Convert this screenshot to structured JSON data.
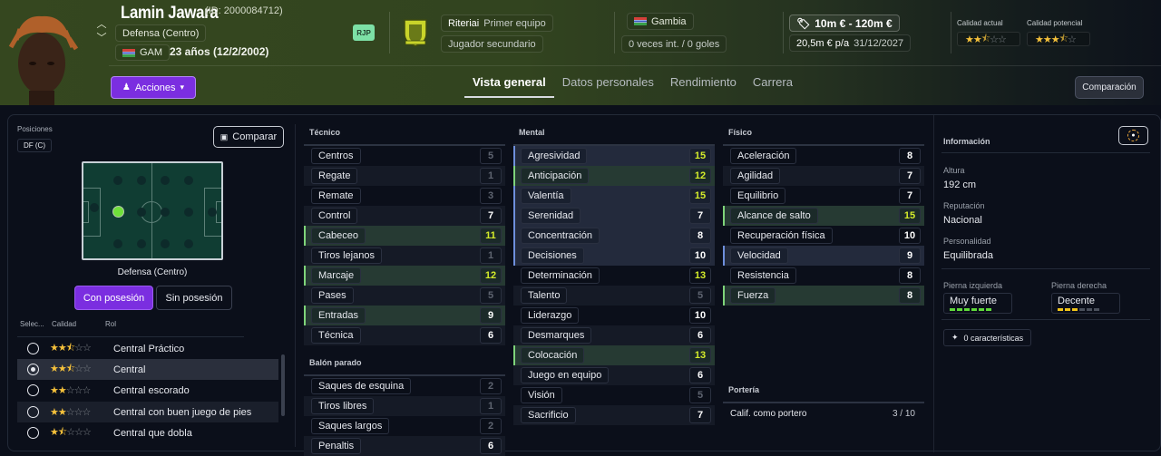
{
  "header": {
    "player_name": "Lamin Jawara",
    "player_id": "(ID: 2000084712)",
    "position": "Defensa (Centro)",
    "nation_code": "GAM",
    "age": "23 años (12/2/2002)",
    "badge": "RJP",
    "actions_label": "Acciones",
    "club_name": "Riteriai",
    "club_team": "Primer equipo",
    "squad_status": "Jugador secundario",
    "nation_name": "Gambia",
    "caps": "0 veces int. / 0 goles",
    "value_range": "10m € - 120m €",
    "wage": "20,5m € p/a",
    "contract_end": "31/12/2027",
    "current_quality_label": "Calidad actual",
    "potential_quality_label": "Calidad potencial",
    "current_stars": 2.5,
    "potential_stars": 3.5
  },
  "tabs": [
    {
      "label": "Vista general",
      "active": true
    },
    {
      "label": "Datos personales",
      "active": false
    },
    {
      "label": "Rendimiento",
      "active": false
    },
    {
      "label": "Carrera",
      "active": false
    }
  ],
  "compare_header_button": "Comparación",
  "left": {
    "positions_label": "Posiciones",
    "position_chip": "DF (C)",
    "compare_button": "Comparar",
    "pitch_caption": "Defensa (Centro)",
    "with_possession": "Con posesión",
    "without_possession": "Sin posesión",
    "role_headers": {
      "select": "Selec...",
      "quality": "Calidad",
      "role": "Rol"
    },
    "roles": [
      {
        "name": "Central Práctico",
        "stars": 2.5,
        "selected": false
      },
      {
        "name": "Central",
        "stars": 2.5,
        "selected": true
      },
      {
        "name": "Central escorado",
        "stars": 2,
        "selected": false
      },
      {
        "name": "Central con buen juego de pies",
        "stars": 2,
        "selected": false
      },
      {
        "name": "Central que dobla",
        "stars": 1.5,
        "selected": false
      }
    ]
  },
  "technical": {
    "title": "Técnico",
    "attributes": [
      {
        "name": "Centros",
        "value": "5",
        "tone": "dim",
        "hl": ""
      },
      {
        "name": "Regate",
        "value": "1",
        "tone": "dim",
        "hl": ""
      },
      {
        "name": "Remate",
        "value": "3",
        "tone": "dim",
        "hl": ""
      },
      {
        "name": "Control",
        "value": "7",
        "tone": "w",
        "hl": ""
      },
      {
        "name": "Cabeceo",
        "value": "11",
        "tone": "y",
        "hl": "green"
      },
      {
        "name": "Tiros lejanos",
        "value": "1",
        "tone": "dim",
        "hl": ""
      },
      {
        "name": "Marcaje",
        "value": "12",
        "tone": "y",
        "hl": "green"
      },
      {
        "name": "Pases",
        "value": "5",
        "tone": "dim",
        "hl": ""
      },
      {
        "name": "Entradas",
        "value": "9",
        "tone": "w",
        "hl": "green"
      },
      {
        "name": "Técnica",
        "value": "6",
        "tone": "w",
        "hl": ""
      }
    ]
  },
  "set_pieces": {
    "title": "Balón parado",
    "attributes": [
      {
        "name": "Saques de esquina",
        "value": "2",
        "tone": "dim",
        "hl": ""
      },
      {
        "name": "Tiros libres",
        "value": "1",
        "tone": "dim",
        "hl": ""
      },
      {
        "name": "Saques largos",
        "value": "2",
        "tone": "dim",
        "hl": ""
      },
      {
        "name": "Penaltis",
        "value": "6",
        "tone": "w",
        "hl": ""
      }
    ]
  },
  "mental": {
    "title": "Mental",
    "attributes": [
      {
        "name": "Agresividad",
        "value": "15",
        "tone": "y",
        "hl": "blue"
      },
      {
        "name": "Anticipación",
        "value": "12",
        "tone": "y",
        "hl": "green"
      },
      {
        "name": "Valentía",
        "value": "15",
        "tone": "y",
        "hl": "blue"
      },
      {
        "name": "Serenidad",
        "value": "7",
        "tone": "w",
        "hl": "blue"
      },
      {
        "name": "Concentración",
        "value": "8",
        "tone": "w",
        "hl": "blue"
      },
      {
        "name": "Decisiones",
        "value": "10",
        "tone": "w",
        "hl": "blue"
      },
      {
        "name": "Determinación",
        "value": "13",
        "tone": "y",
        "hl": ""
      },
      {
        "name": "Talento",
        "value": "5",
        "tone": "dim",
        "hl": ""
      },
      {
        "name": "Liderazgo",
        "value": "10",
        "tone": "w",
        "hl": ""
      },
      {
        "name": "Desmarques",
        "value": "6",
        "tone": "w",
        "hl": ""
      },
      {
        "name": "Colocación",
        "value": "13",
        "tone": "y",
        "hl": "green"
      },
      {
        "name": "Juego en equipo",
        "value": "6",
        "tone": "w",
        "hl": ""
      },
      {
        "name": "Visión",
        "value": "5",
        "tone": "dim",
        "hl": ""
      },
      {
        "name": "Sacrificio",
        "value": "7",
        "tone": "w",
        "hl": ""
      }
    ]
  },
  "physical": {
    "title": "Físico",
    "attributes": [
      {
        "name": "Aceleración",
        "value": "8",
        "tone": "w",
        "hl": ""
      },
      {
        "name": "Agilidad",
        "value": "7",
        "tone": "w",
        "hl": ""
      },
      {
        "name": "Equilibrio",
        "value": "7",
        "tone": "w",
        "hl": ""
      },
      {
        "name": "Alcance de salto",
        "value": "15",
        "tone": "y",
        "hl": "green"
      },
      {
        "name": "Recuperación física",
        "value": "10",
        "tone": "w",
        "hl": ""
      },
      {
        "name": "Velocidad",
        "value": "9",
        "tone": "w",
        "hl": "blue"
      },
      {
        "name": "Resistencia",
        "value": "8",
        "tone": "w",
        "hl": ""
      },
      {
        "name": "Fuerza",
        "value": "8",
        "tone": "w",
        "hl": "green"
      }
    ]
  },
  "goalkeeping": {
    "title": "Portería",
    "label": "Calif. como portero",
    "value": "3 / 10"
  },
  "info": {
    "title": "Información",
    "height_label": "Altura",
    "height": "192 cm",
    "reputation_label": "Reputación",
    "reputation": "Nacional",
    "personality_label": "Personalidad",
    "personality": "Equilibrada",
    "left_foot_label": "Pierna izquierda",
    "left_foot": "Muy fuerte",
    "left_foot_pips": 6,
    "right_foot_label": "Pierna derecha",
    "right_foot": "Decente",
    "right_foot_pips": 3,
    "traits_button": "0 características"
  },
  "colors": {
    "accent_purple": "#7b2ee0",
    "highlight_yellow": "#d4ec2a",
    "star": "#f5c13b",
    "green_pip": "#5fd93a",
    "yellow_pip": "#f0c419"
  }
}
